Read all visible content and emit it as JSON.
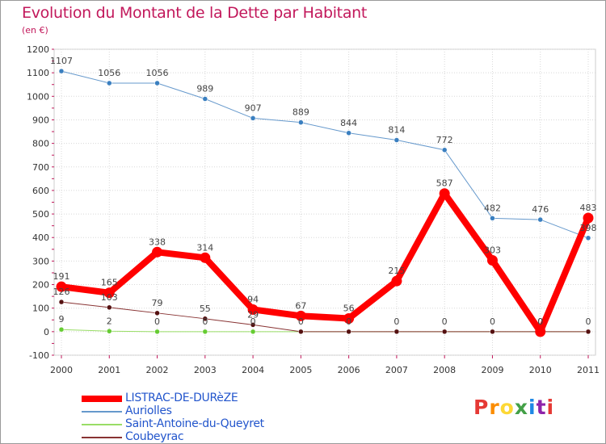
{
  "title": "Evolution du Montant de la Dette par Habitant",
  "unit": "(en €)",
  "logo": {
    "text": "Proxiti",
    "colors": [
      "#e53935",
      "#fb8c00",
      "#fdd835",
      "#43a047",
      "#1e88e5",
      "#8e24aa",
      "#e53935"
    ]
  },
  "chart_data": {
    "type": "line",
    "x": [
      "2000",
      "2001",
      "2002",
      "2003",
      "2004",
      "2005",
      "2006",
      "2007",
      "2008",
      "2009",
      "2010",
      "2011"
    ],
    "ylim": [
      -100,
      1200
    ],
    "yticks": [
      "-100",
      "0",
      "100",
      "200",
      "300",
      "400",
      "500",
      "600",
      "700",
      "800",
      "900",
      "1000",
      "1100",
      "1200"
    ],
    "grid": true,
    "legend_position": "bottom-left",
    "series": [
      {
        "name": "Auriolles",
        "color": "#6699cc",
        "marker_color": "#3a7fc0",
        "width": 1,
        "values": [
          1107,
          1056,
          1056,
          989,
          907,
          889,
          844,
          814,
          772,
          482,
          476,
          398
        ],
        "labels": [
          "1107",
          "1056",
          "1056",
          "989",
          "907",
          "889",
          "844",
          "814",
          "772",
          "482",
          "476",
          "398"
        ]
      },
      {
        "name": "Saint-Antoine-du-Queyret",
        "color": "#99dd66",
        "marker_color": "#66cc33",
        "width": 1,
        "values": [
          9,
          2,
          0,
          0,
          0,
          0,
          0,
          0,
          0,
          0,
          0,
          0
        ],
        "labels": [
          "9",
          "2",
          "0",
          "0",
          "0",
          "",
          "",
          "",
          "",
          "",
          "",
          ""
        ]
      },
      {
        "name": "Coubeyrac",
        "color": "#883333",
        "marker_color": "#551111",
        "width": 1,
        "values": [
          126,
          103,
          79,
          55,
          29,
          0,
          0,
          0,
          0,
          0,
          0,
          0
        ],
        "labels": [
          "126",
          "103",
          "79",
          "55",
          "29",
          "0",
          "0",
          "0",
          "0",
          "0",
          "0",
          "0"
        ]
      },
      {
        "name": "LISTRAC-DE-DURèZE",
        "color": "#ff0000",
        "marker_color": "#ff0000",
        "width": 8,
        "values": [
          191,
          165,
          338,
          314,
          94,
          67,
          56,
          215,
          587,
          303,
          0,
          483
        ],
        "labels": [
          "191",
          "165",
          "338",
          "314",
          "94",
          "67",
          "56",
          "215",
          "587",
          "303",
          "0",
          "483"
        ]
      }
    ]
  }
}
